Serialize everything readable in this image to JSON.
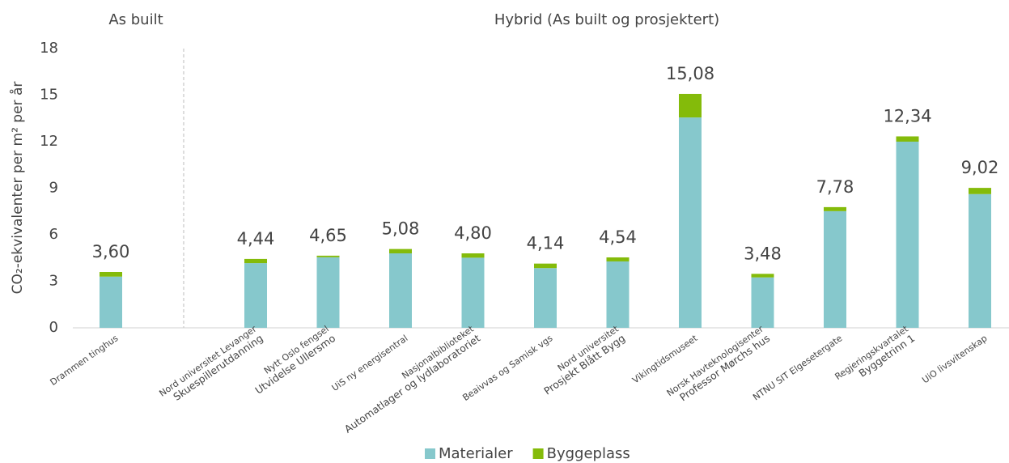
{
  "chart_data": {
    "type": "stacked_bar",
    "group_labels": [
      "As built",
      "Hybrid (As built og prosjektert)"
    ],
    "y_label": "CO₂-ekvivalenter per m² per år",
    "categories": [
      [
        "Drammen tinghus"
      ],
      [
        "Nord universitet Levanger",
        "Skuespillerutdanning"
      ],
      [
        "Nytt Oslo fengsel",
        "Utvidelse Ullersmo"
      ],
      [
        "UiS ny energisentral"
      ],
      [
        "Nasjonalbiblioteket",
        "Automatlager og lydlaboratoriet"
      ],
      [
        "Beaivvas og Samisk vgs"
      ],
      [
        "Nord universitet",
        "Prosjekt Blått Bygg"
      ],
      [
        "Vikingtidsmuseet"
      ],
      [
        "Norsk Havteknologisenter",
        "Professor Mørchs hus"
      ],
      [
        "NTNU SIT Elgesetergate"
      ],
      [
        "Regjeringskvartalet",
        "Byggetrinn 1"
      ],
      [
        "UiO livsvitenskap"
      ]
    ],
    "series": [
      {
        "name": "Materialer",
        "color": "#86c8cc",
        "values": [
          3.3,
          4.17,
          4.55,
          4.8,
          4.52,
          3.85,
          4.28,
          13.56,
          3.25,
          7.52,
          12.0,
          8.62
        ]
      },
      {
        "name": "Byggeplass",
        "color": "#84bb0a",
        "values": [
          0.3,
          0.27,
          0.1,
          0.28,
          0.28,
          0.29,
          0.26,
          1.52,
          0.23,
          0.26,
          0.34,
          0.4
        ]
      }
    ],
    "totals": [
      3.6,
      4.44,
      4.65,
      5.08,
      4.8,
      4.14,
      4.54,
      15.08,
      3.48,
      7.78,
      12.34,
      9.02
    ],
    "total_labels": [
      "3,60",
      "4,44",
      "4,65",
      "5,08",
      "4,80",
      "4,14",
      "4,54",
      "15,08",
      "3,48",
      "7,78",
      "12,34",
      "9,02"
    ],
    "ylim": [
      0,
      18
    ],
    "yticks": [
      0,
      3,
      6,
      9,
      12,
      15,
      18
    ],
    "grid": false,
    "legend": "bottom"
  }
}
